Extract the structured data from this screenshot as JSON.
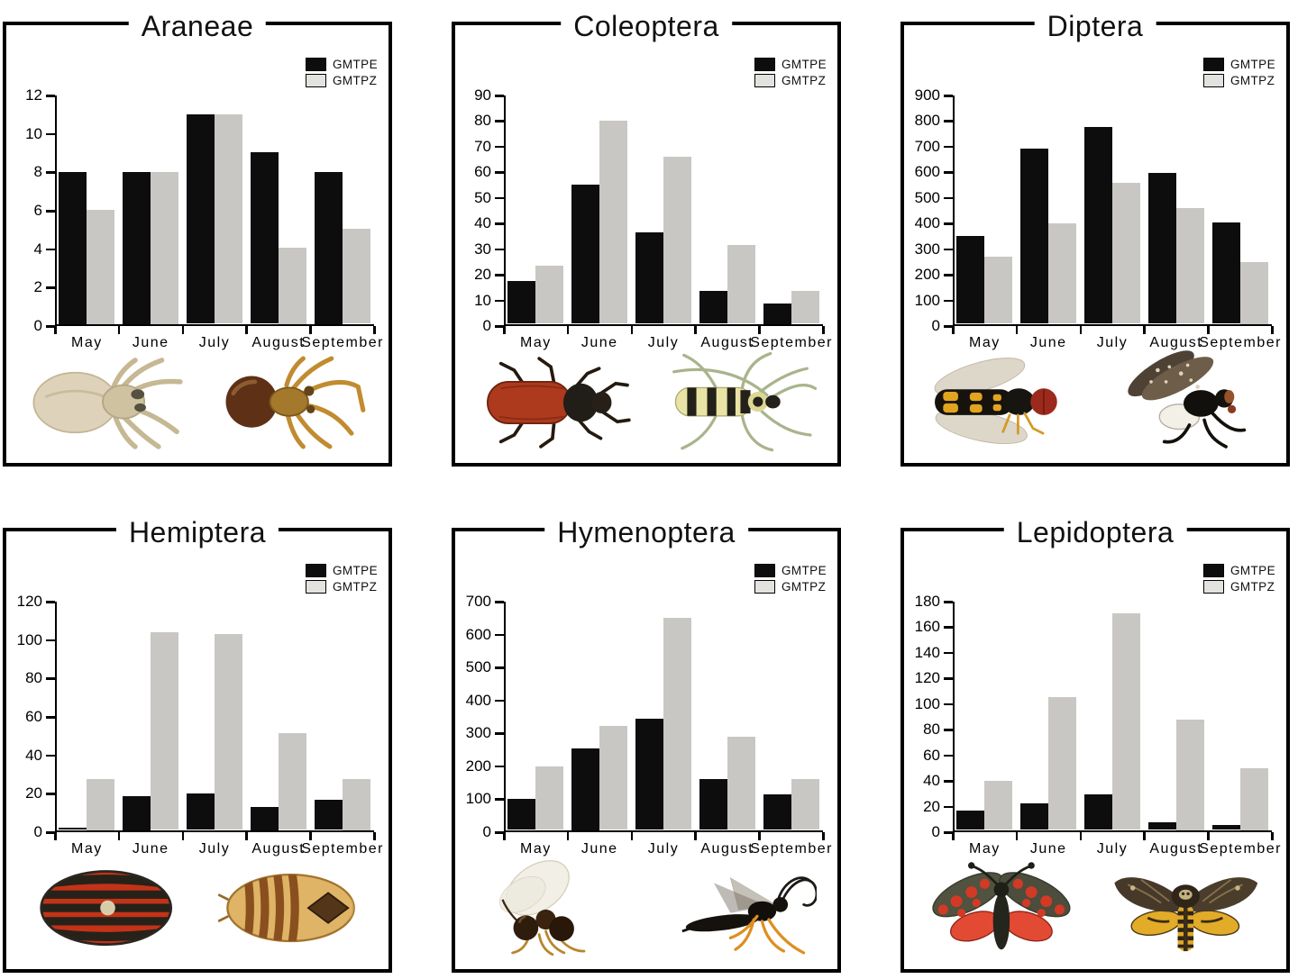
{
  "figure": {
    "background": "#ffffff",
    "panel_border_color": "#000000",
    "bar_color_gmtpe": "#0d0d0d",
    "bar_color_gmtpz": "#c9c7c3",
    "legend_swatch_gmtpz_fill": "#e4e2de",
    "months": [
      "May",
      "June",
      "July",
      "August",
      "September"
    ]
  },
  "chart_data": [
    {
      "type": "bar",
      "title": "Araneae",
      "categories": [
        "May",
        "June",
        "July",
        "August",
        "September"
      ],
      "series": [
        {
          "name": "GMTPE",
          "color": "#0d0d0d",
          "values": [
            8,
            8,
            11,
            9,
            8
          ]
        },
        {
          "name": "GMTPZ",
          "color": "#c9c7c3",
          "values": [
            6,
            8,
            11,
            4,
            5
          ]
        }
      ],
      "ylim": [
        0,
        12
      ],
      "ytick_step": 2,
      "grid": false,
      "legend_position": "top-right",
      "photos": [
        "pale-spider-photo",
        "brown-spider-photo"
      ]
    },
    {
      "type": "bar",
      "title": "Coleoptera",
      "categories": [
        "May",
        "June",
        "July",
        "August",
        "September"
      ],
      "series": [
        {
          "name": "GMTPE",
          "color": "#0d0d0d",
          "values": [
            17,
            55,
            36,
            13,
            8
          ]
        },
        {
          "name": "GMTPZ",
          "color": "#c9c7c3",
          "values": [
            23,
            80,
            66,
            31,
            13
          ]
        }
      ],
      "ylim": [
        0,
        90
      ],
      "ytick_step": 10,
      "grid": false,
      "legend_position": "top-right",
      "photos": [
        "red-beetle-photo",
        "yellow-black-longhorn-beetle-photo"
      ]
    },
    {
      "type": "bar",
      "title": "Diptera",
      "categories": [
        "May",
        "June",
        "July",
        "August",
        "September"
      ],
      "series": [
        {
          "name": "GMTPE",
          "color": "#0d0d0d",
          "values": [
            345,
            690,
            775,
            595,
            400
          ]
        },
        {
          "name": "GMTPZ",
          "color": "#c9c7c3",
          "values": [
            265,
            395,
            555,
            455,
            245
          ]
        }
      ],
      "ylim": [
        0,
        900
      ],
      "ytick_step": 100,
      "grid": false,
      "legend_position": "top-right",
      "photos": [
        "hoverfly-photo",
        "mottled-wing-fly-photo"
      ]
    },
    {
      "type": "bar",
      "title": "Hemiptera",
      "categories": [
        "May",
        "June",
        "July",
        "August",
        "September"
      ],
      "series": [
        {
          "name": "GMTPE",
          "color": "#0d0d0d",
          "values": [
            1,
            18,
            19,
            12,
            16
          ]
        },
        {
          "name": "GMTPZ",
          "color": "#c9c7c3",
          "values": [
            27,
            104,
            103,
            51,
            27
          ]
        }
      ],
      "ylim": [
        0,
        120
      ],
      "ytick_step": 20,
      "grid": false,
      "legend_position": "top-right",
      "photos": [
        "red-black-striped-shieldbug-photo",
        "amber-striped-planthopper-photo"
      ]
    },
    {
      "type": "bar",
      "title": "Hymenoptera",
      "categories": [
        "May",
        "June",
        "July",
        "August",
        "September"
      ],
      "series": [
        {
          "name": "GMTPE",
          "color": "#0d0d0d",
          "values": [
            95,
            250,
            340,
            155,
            110
          ]
        },
        {
          "name": "GMTPZ",
          "color": "#c9c7c3",
          "values": [
            195,
            320,
            650,
            285,
            155
          ]
        }
      ],
      "ylim": [
        0,
        700
      ],
      "ytick_step": 100,
      "grid": false,
      "legend_position": "top-right",
      "photos": [
        "small-dark-wasp-photo",
        "ichneumon-wasp-photo"
      ]
    },
    {
      "type": "bar",
      "title": "Lepidoptera",
      "categories": [
        "May",
        "June",
        "July",
        "August",
        "September"
      ],
      "series": [
        {
          "name": "GMTPE",
          "color": "#0d0d0d",
          "values": [
            15,
            21,
            28,
            6,
            4
          ]
        },
        {
          "name": "GMTPZ",
          "color": "#c9c7c3",
          "values": [
            39,
            105,
            171,
            87,
            49
          ]
        }
      ],
      "ylim": [
        0,
        180
      ],
      "ytick_step": 20,
      "grid": false,
      "legend_position": "top-right",
      "photos": [
        "burnet-moth-photo",
        "deaths-head-hawkmoth-photo"
      ]
    }
  ]
}
